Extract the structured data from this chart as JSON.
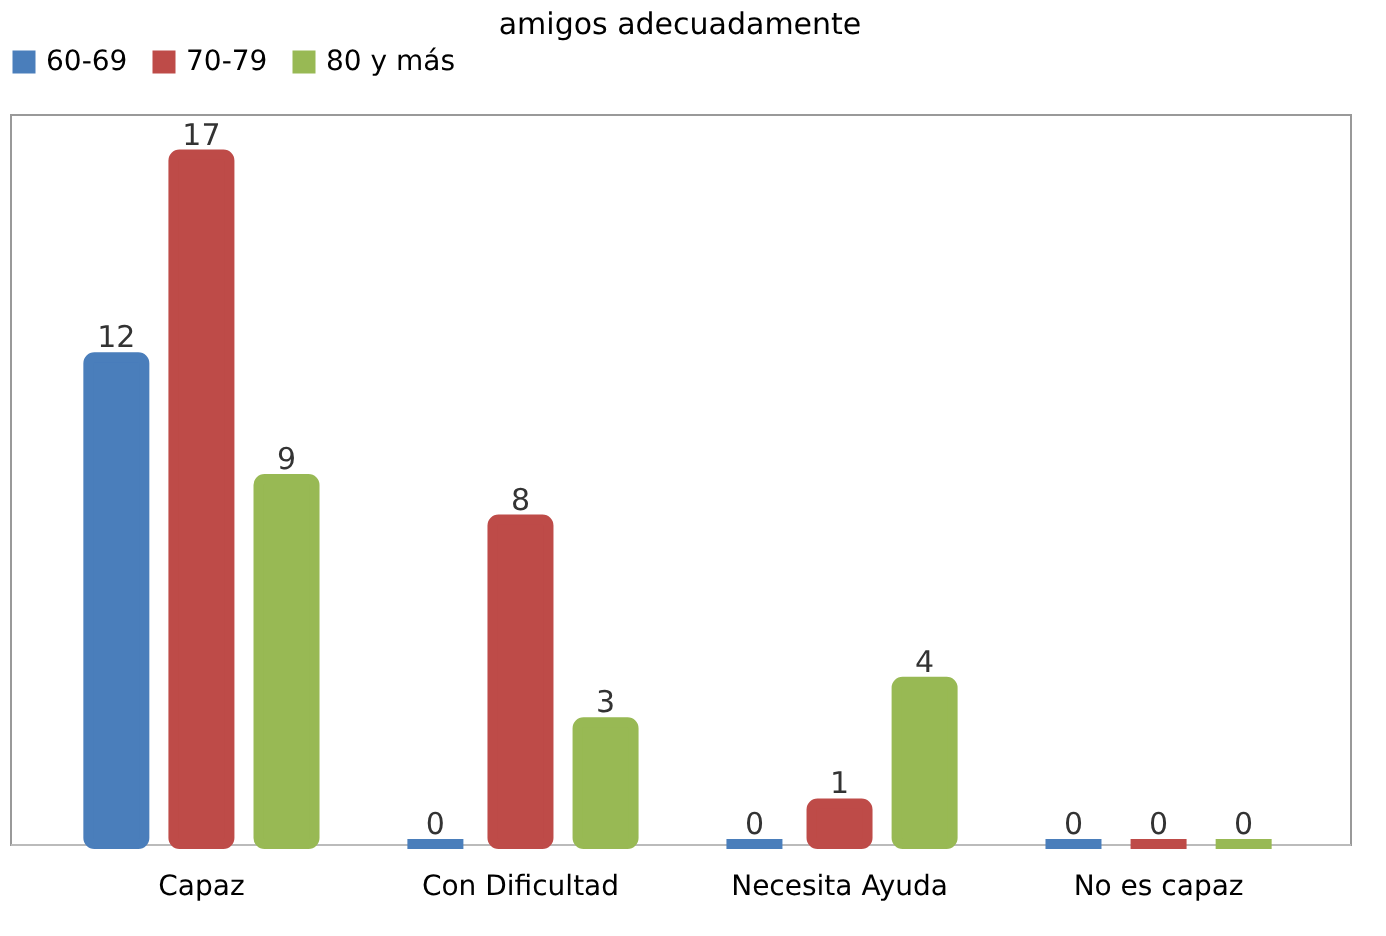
{
  "chart_data": {
    "type": "bar",
    "title": "amigos adecuadamente",
    "categories": [
      "Capaz",
      "Con Dificultad",
      "Necesita Ayuda",
      "No es capaz"
    ],
    "series": [
      {
        "name": "60-69",
        "color": "#4a7ebb",
        "values": [
          12,
          0,
          0,
          0
        ]
      },
      {
        "name": "70-79",
        "color": "#be4b48",
        "values": [
          17,
          8,
          1,
          0
        ]
      },
      {
        "name": "80 y más",
        "color": "#98b954",
        "values": [
          9,
          3,
          4,
          0
        ]
      }
    ],
    "data_labels": true,
    "legend": "top",
    "grid": false
  }
}
